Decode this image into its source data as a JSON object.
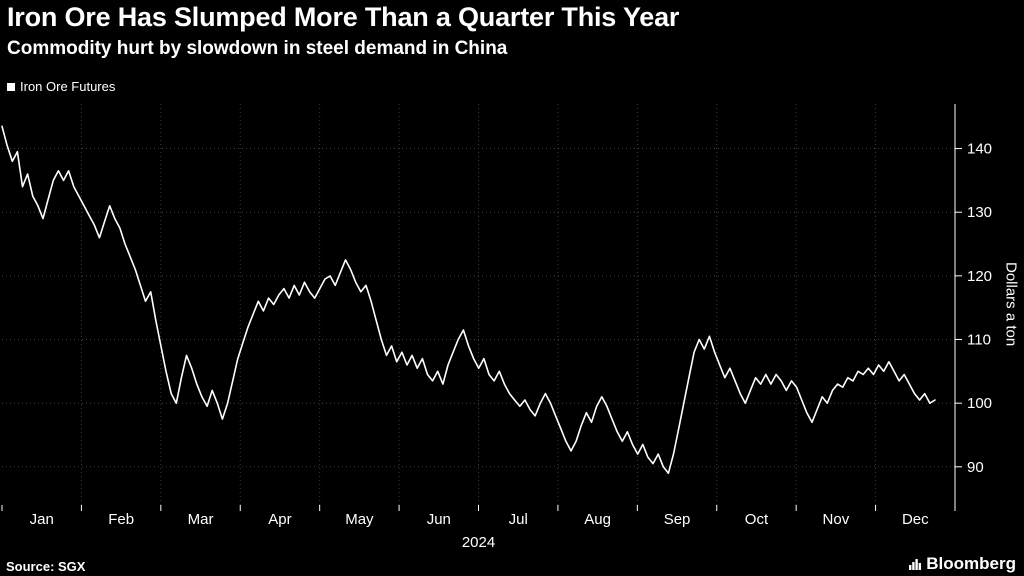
{
  "colors": {
    "background": "#000000",
    "text": "#ffffff",
    "line": "#ffffff",
    "grid": "#3f3f3f",
    "axis": "#ffffff"
  },
  "footer": {
    "source": "Source: SGX",
    "brand": "Bloomberg"
  },
  "chart_data": {
    "type": "line",
    "title": "Iron Ore Has Slumped More Than a Quarter This Year",
    "subtitle": "Commodity hurt by slowdown in steel demand in China",
    "legend_position": "top-left",
    "grid": "dotted",
    "x_months": [
      "Jan",
      "Feb",
      "Mar",
      "Apr",
      "May",
      "Jun",
      "Jul",
      "Aug",
      "Sep",
      "Oct",
      "Nov",
      "Dec"
    ],
    "year": "2024",
    "ylabel": "Dollars a ton",
    "y_ticks": [
      90,
      100,
      110,
      120,
      130,
      140
    ],
    "ylim": [
      84,
      147
    ],
    "x_fill": 0.979,
    "series": [
      {
        "name": "Iron Ore Futures",
        "color": "#ffffff",
        "values": [
          143.5,
          140.5,
          138,
          139.5,
          134,
          136,
          132.5,
          131,
          129,
          132,
          135,
          136.5,
          135,
          136.5,
          134,
          132.5,
          131,
          129.5,
          128,
          126,
          128.5,
          131,
          129,
          127.5,
          125,
          123,
          121,
          118.5,
          116,
          117.5,
          113,
          109,
          105,
          101.5,
          100,
          104,
          107.5,
          105.5,
          103,
          101,
          99.5,
          102,
          100,
          97.5,
          100,
          103.5,
          107,
          109.5,
          112,
          114,
          116,
          114.5,
          116.5,
          115.5,
          117,
          118,
          116.5,
          118.5,
          117,
          119,
          117.5,
          116.5,
          118,
          119.5,
          120,
          118.5,
          120.5,
          122.5,
          121,
          119,
          117.5,
          118.5,
          116,
          113,
          110,
          107.5,
          109,
          106.5,
          108,
          106,
          107.5,
          105.5,
          107,
          104.5,
          103.5,
          105,
          103,
          106,
          108,
          110,
          111.5,
          109,
          107,
          105.5,
          107,
          104.5,
          103.5,
          105,
          103,
          101.5,
          100.5,
          99.5,
          100.5,
          99,
          98,
          100,
          101.5,
          100,
          98,
          96,
          94,
          92.5,
          94,
          96.5,
          98.5,
          97,
          99.5,
          101,
          99.5,
          97.5,
          95.5,
          94,
          95.5,
          93.5,
          92,
          93.5,
          91.5,
          90.5,
          92,
          90,
          89,
          92,
          96,
          100,
          104,
          108,
          110,
          108.5,
          110.5,
          108,
          106,
          104,
          105.5,
          103.5,
          101.5,
          100,
          102,
          104,
          103,
          104.5,
          103,
          104.5,
          103.5,
          102,
          103.5,
          102.5,
          100.5,
          98.5,
          97,
          99,
          101,
          100,
          102,
          103,
          102.5,
          104,
          103.5,
          105,
          104.5,
          105.5,
          104.5,
          106,
          105,
          106.5,
          105,
          103.5,
          104.5,
          103,
          101.5,
          100.5,
          101.5,
          100,
          100.5
        ]
      }
    ]
  }
}
